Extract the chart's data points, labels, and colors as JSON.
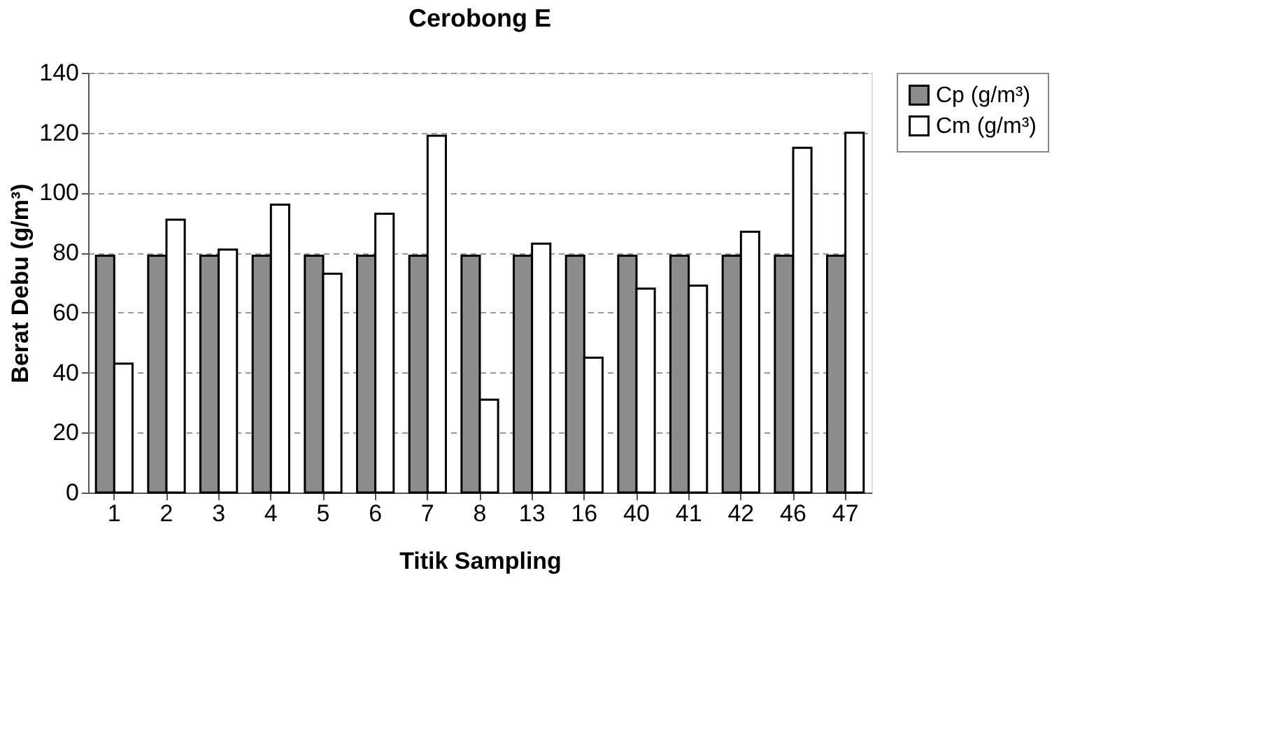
{
  "chart_data": {
    "type": "bar",
    "title": "Cerobong E",
    "xlabel": "Titik Sampling",
    "ylabel": "Berat Debu (g/m³)",
    "categories": [
      "1",
      "2",
      "3",
      "4",
      "5",
      "6",
      "7",
      "8",
      "13",
      "16",
      "40",
      "41",
      "42",
      "46",
      "47"
    ],
    "series": [
      {
        "name": "Cp (g/m³)",
        "color": "#8c8c8c",
        "values": [
          79,
          79,
          79,
          79,
          79,
          79,
          79,
          79,
          79,
          79,
          79,
          79,
          79,
          79,
          79
        ]
      },
      {
        "name": "Cm (g/m³)",
        "color": "#ffffff",
        "values": [
          43,
          91,
          81,
          96,
          73,
          93,
          119,
          31,
          83,
          45,
          68,
          69,
          87,
          115,
          120
        ]
      }
    ],
    "ylim": [
      0,
      140
    ],
    "yticks": [
      0,
      20,
      40,
      60,
      80,
      100,
      120,
      140
    ],
    "grid": "y",
    "legend": "right"
  }
}
